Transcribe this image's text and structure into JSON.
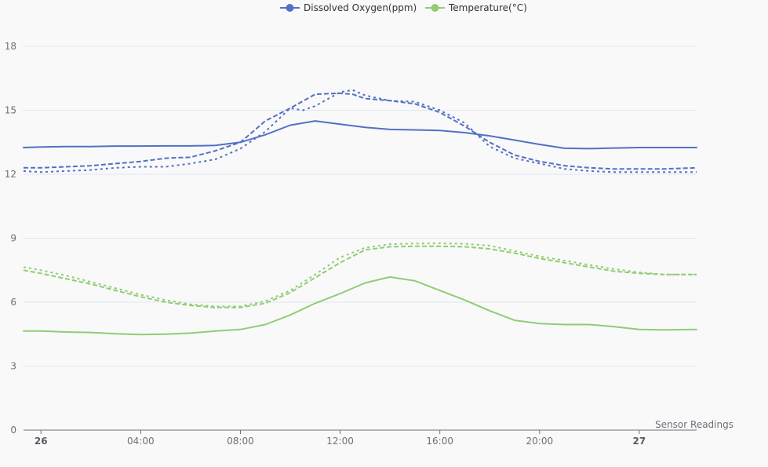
{
  "chart_data": {
    "type": "line",
    "legend": {
      "placement": "top-center",
      "items": [
        {
          "label": "Dissolved Oxygen(ppm)",
          "color": "#5470c6"
        },
        {
          "label": "Temperature(°C)",
          "color": "#91cc75"
        }
      ]
    },
    "xlabel": "Sensor Readings",
    "ylabel": "",
    "xlim": [
      -0.7,
      26.3
    ],
    "ylim": [
      0,
      18
    ],
    "x_ticks": [
      {
        "x": 0,
        "label": "26",
        "bold": true
      },
      {
        "x": 4,
        "label": "04:00",
        "bold": false
      },
      {
        "x": 8,
        "label": "08:00",
        "bold": false
      },
      {
        "x": 12,
        "label": "12:00",
        "bold": false
      },
      {
        "x": 16,
        "label": "16:00",
        "bold": false
      },
      {
        "x": 20,
        "label": "20:00",
        "bold": false
      },
      {
        "x": 24,
        "label": "27",
        "bold": true
      }
    ],
    "y_ticks": [
      0,
      3,
      6,
      9,
      12,
      15,
      18
    ],
    "grid": true,
    "series": [
      {
        "name": "Dissolved Oxygen(ppm)",
        "color": "#5470c6",
        "dash": "solid",
        "points": [
          [
            -0.7,
            13.25
          ],
          [
            0,
            13.28
          ],
          [
            1,
            13.3
          ],
          [
            2,
            13.3
          ],
          [
            3,
            13.32
          ],
          [
            4,
            13.32
          ],
          [
            5,
            13.33
          ],
          [
            6,
            13.33
          ],
          [
            7,
            13.35
          ],
          [
            8,
            13.5
          ],
          [
            9,
            13.85
          ],
          [
            10,
            14.3
          ],
          [
            11,
            14.5
          ],
          [
            12,
            14.35
          ],
          [
            13,
            14.2
          ],
          [
            14,
            14.1
          ],
          [
            15,
            14.08
          ],
          [
            16,
            14.05
          ],
          [
            17,
            13.95
          ],
          [
            18,
            13.8
          ],
          [
            19,
            13.6
          ],
          [
            20,
            13.4
          ],
          [
            21,
            13.22
          ],
          [
            22,
            13.2
          ],
          [
            23,
            13.23
          ],
          [
            24,
            13.25
          ],
          [
            25,
            13.25
          ],
          [
            26.3,
            13.25
          ]
        ]
      },
      {
        "name": "",
        "color": "#5470c6",
        "dash": "dashed",
        "points": [
          [
            -0.7,
            12.3
          ],
          [
            0,
            12.3
          ],
          [
            1,
            12.35
          ],
          [
            2,
            12.4
          ],
          [
            3,
            12.5
          ],
          [
            4,
            12.6
          ],
          [
            5,
            12.75
          ],
          [
            6,
            12.8
          ],
          [
            7,
            13.1
          ],
          [
            8,
            13.5
          ],
          [
            8.5,
            14.0
          ],
          [
            9,
            14.5
          ],
          [
            10,
            15.1
          ],
          [
            11,
            15.75
          ],
          [
            12,
            15.8
          ],
          [
            12.5,
            15.75
          ],
          [
            13,
            15.55
          ],
          [
            14,
            15.45
          ],
          [
            15,
            15.3
          ],
          [
            16,
            14.9
          ],
          [
            17,
            14.25
          ],
          [
            18,
            13.5
          ],
          [
            19,
            12.9
          ],
          [
            20,
            12.6
          ],
          [
            21,
            12.4
          ],
          [
            22,
            12.3
          ],
          [
            23,
            12.25
          ],
          [
            24,
            12.25
          ],
          [
            25,
            12.25
          ],
          [
            26.3,
            12.3
          ]
        ]
      },
      {
        "name": "",
        "color": "#5470c6",
        "dash": "dotted",
        "points": [
          [
            -0.7,
            12.15
          ],
          [
            0,
            12.1
          ],
          [
            1,
            12.15
          ],
          [
            2,
            12.2
          ],
          [
            3,
            12.3
          ],
          [
            4,
            12.35
          ],
          [
            5,
            12.35
          ],
          [
            6,
            12.5
          ],
          [
            7,
            12.7
          ],
          [
            8,
            13.2
          ],
          [
            9,
            14.0
          ],
          [
            10,
            15.1
          ],
          [
            10.5,
            15.0
          ],
          [
            11,
            15.2
          ],
          [
            12,
            15.85
          ],
          [
            12.5,
            15.95
          ],
          [
            13,
            15.7
          ],
          [
            14,
            15.45
          ],
          [
            15,
            15.4
          ],
          [
            16,
            15.0
          ],
          [
            17,
            14.4
          ],
          [
            18,
            13.3
          ],
          [
            19,
            12.75
          ],
          [
            20,
            12.5
          ],
          [
            21,
            12.25
          ],
          [
            22,
            12.15
          ],
          [
            23,
            12.1
          ],
          [
            24,
            12.1
          ],
          [
            25,
            12.1
          ],
          [
            26.3,
            12.1
          ]
        ]
      },
      {
        "name": "Temperature(°C)",
        "color": "#91cc75",
        "dash": "solid",
        "points": [
          [
            -0.7,
            4.65
          ],
          [
            0,
            4.65
          ],
          [
            1,
            4.6
          ],
          [
            2,
            4.58
          ],
          [
            3,
            4.52
          ],
          [
            4,
            4.48
          ],
          [
            5,
            4.5
          ],
          [
            6,
            4.55
          ],
          [
            7,
            4.65
          ],
          [
            8,
            4.72
          ],
          [
            9,
            4.95
          ],
          [
            10,
            5.4
          ],
          [
            11,
            5.95
          ],
          [
            12,
            6.4
          ],
          [
            13,
            6.9
          ],
          [
            14,
            7.18
          ],
          [
            15,
            7.0
          ],
          [
            16,
            6.55
          ],
          [
            17,
            6.1
          ],
          [
            18,
            5.6
          ],
          [
            19,
            5.15
          ],
          [
            20,
            5.0
          ],
          [
            21,
            4.95
          ],
          [
            22,
            4.95
          ],
          [
            23,
            4.85
          ],
          [
            24,
            4.72
          ],
          [
            25,
            4.7
          ],
          [
            26.3,
            4.72
          ]
        ]
      },
      {
        "name": "",
        "color": "#91cc75",
        "dash": "dashed",
        "points": [
          [
            -0.7,
            7.5
          ],
          [
            0,
            7.35
          ],
          [
            1,
            7.1
          ],
          [
            2,
            6.85
          ],
          [
            3,
            6.55
          ],
          [
            4,
            6.25
          ],
          [
            5,
            6.0
          ],
          [
            6,
            5.85
          ],
          [
            7,
            5.75
          ],
          [
            8,
            5.75
          ],
          [
            9,
            5.95
          ],
          [
            10,
            6.45
          ],
          [
            11,
            7.15
          ],
          [
            12,
            7.85
          ],
          [
            13,
            8.45
          ],
          [
            14,
            8.6
          ],
          [
            15,
            8.62
          ],
          [
            16,
            8.62
          ],
          [
            17,
            8.6
          ],
          [
            18,
            8.5
          ],
          [
            19,
            8.3
          ],
          [
            20,
            8.05
          ],
          [
            21,
            7.85
          ],
          [
            22,
            7.65
          ],
          [
            23,
            7.45
          ],
          [
            24,
            7.35
          ],
          [
            25,
            7.3
          ],
          [
            26.3,
            7.3
          ]
        ]
      },
      {
        "name": "",
        "color": "#91cc75",
        "dash": "dotted",
        "points": [
          [
            -0.7,
            7.65
          ],
          [
            0,
            7.5
          ],
          [
            1,
            7.25
          ],
          [
            2,
            6.95
          ],
          [
            3,
            6.65
          ],
          [
            4,
            6.35
          ],
          [
            5,
            6.1
          ],
          [
            6,
            5.9
          ],
          [
            7,
            5.8
          ],
          [
            8,
            5.8
          ],
          [
            9,
            6.05
          ],
          [
            10,
            6.55
          ],
          [
            11,
            7.3
          ],
          [
            12,
            8.1
          ],
          [
            13,
            8.55
          ],
          [
            14,
            8.72
          ],
          [
            15,
            8.75
          ],
          [
            16,
            8.76
          ],
          [
            17,
            8.74
          ],
          [
            18,
            8.65
          ],
          [
            19,
            8.4
          ],
          [
            20,
            8.15
          ],
          [
            21,
            7.95
          ],
          [
            22,
            7.75
          ],
          [
            23,
            7.55
          ],
          [
            24,
            7.4
          ],
          [
            25,
            7.3
          ],
          [
            26.3,
            7.3
          ]
        ]
      }
    ]
  }
}
